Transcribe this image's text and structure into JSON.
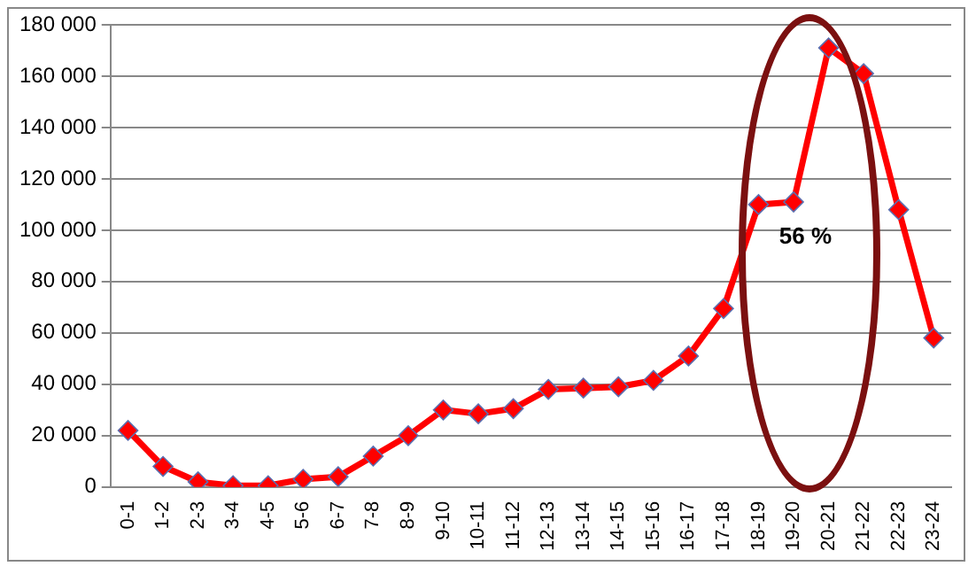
{
  "chart_data": {
    "type": "line",
    "categories": [
      "0-1",
      "1-2",
      "2-3",
      "3-4",
      "4-5",
      "5-6",
      "6-7",
      "7-8",
      "8-9",
      "9-10",
      "10-11",
      "11-12",
      "12-13",
      "13-14",
      "14-15",
      "15-16",
      "16-17",
      "17-18",
      "18-19",
      "19-20",
      "20-21",
      "21-22",
      "22-23",
      "23-24"
    ],
    "series": [
      {
        "color": "#ff0000",
        "values": [
          22000,
          8000,
          2000,
          500,
          500,
          3000,
          4000,
          12000,
          20000,
          30000,
          28500,
          30500,
          38000,
          38500,
          39000,
          41500,
          51000,
          69500,
          110000,
          111000,
          171000,
          161000,
          108000,
          58000
        ]
      }
    ],
    "ylim": [
      0,
      180000
    ],
    "yticks": [
      {
        "value": 0,
        "label": "0"
      },
      {
        "value": 20000,
        "label": "20 000"
      },
      {
        "value": 40000,
        "label": "40 000"
      },
      {
        "value": 60000,
        "label": "60 000"
      },
      {
        "value": 80000,
        "label": "80 000"
      },
      {
        "value": 100000,
        "label": "100 000"
      },
      {
        "value": 120000,
        "label": "120 000"
      },
      {
        "value": 140000,
        "label": "140 000"
      },
      {
        "value": 160000,
        "label": "160 000"
      },
      {
        "value": 180000,
        "label": "180 000"
      }
    ],
    "grid": "y",
    "legend": false,
    "marker": "diamond",
    "line_style": "solid",
    "annotations": [
      "56 %"
    ]
  }
}
